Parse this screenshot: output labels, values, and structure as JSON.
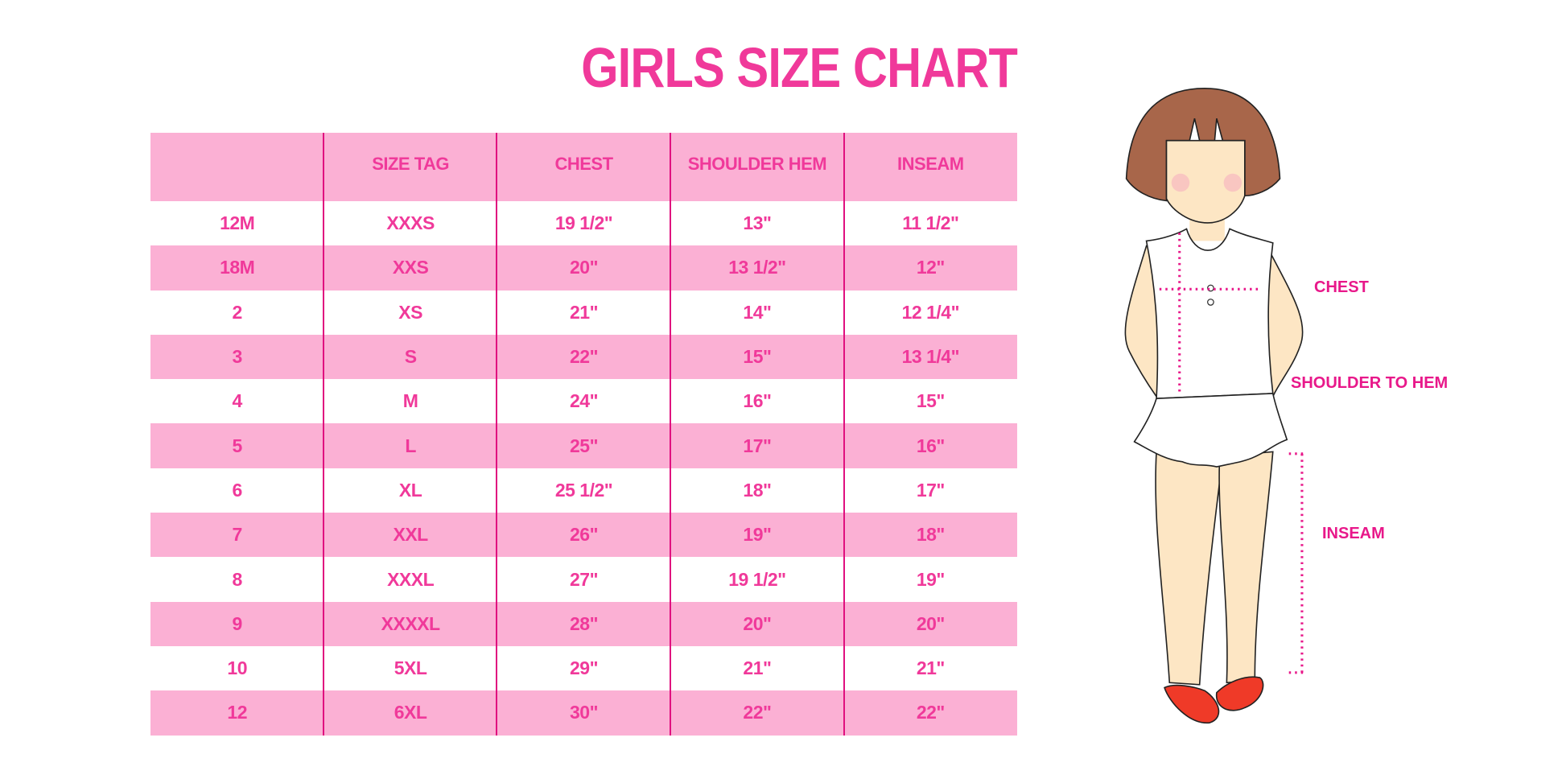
{
  "title": "GIRLS SIZE CHART",
  "colors": {
    "accent": "#f0399a",
    "pink": "#fbb0d4",
    "line": "#e0107f",
    "label": "#e8188a",
    "shoe": "#ef3a28",
    "hair": "#a8664a",
    "skin": "#fde6c4"
  },
  "table": {
    "headers": [
      "",
      "SIZE TAG",
      "CHEST",
      "SHOULDER HEM",
      "INSEAM"
    ],
    "rows": [
      [
        "12M",
        "XXXS",
        "19 1/2\"",
        "13\"",
        "11 1/2\""
      ],
      [
        "18M",
        "XXS",
        "20\"",
        "13 1/2\"",
        "12\""
      ],
      [
        "2",
        "XS",
        "21\"",
        "14\"",
        "12 1/4\""
      ],
      [
        "3",
        "S",
        "22\"",
        "15\"",
        "13 1/4\""
      ],
      [
        "4",
        "M",
        "24\"",
        "16\"",
        "15\""
      ],
      [
        "5",
        "L",
        "25\"",
        "17\"",
        "16\""
      ],
      [
        "6",
        "XL",
        "25 1/2\"",
        "18\"",
        "17\""
      ],
      [
        "7",
        "XXL",
        "26\"",
        "19\"",
        "18\""
      ],
      [
        "8",
        "XXXL",
        "27\"",
        "19 1/2\"",
        "19\""
      ],
      [
        "9",
        "XXXXL",
        "28\"",
        "20\"",
        "20\""
      ],
      [
        "10",
        "5XL",
        "29\"",
        "21\"",
        "21\""
      ],
      [
        "12",
        "6XL",
        "30\"",
        "22\"",
        "22\""
      ]
    ]
  },
  "figure": {
    "labels": {
      "chest": "CHEST",
      "shoulder_to_hem": "SHOULDER TO HEM",
      "inseam": "INSEAM"
    }
  }
}
